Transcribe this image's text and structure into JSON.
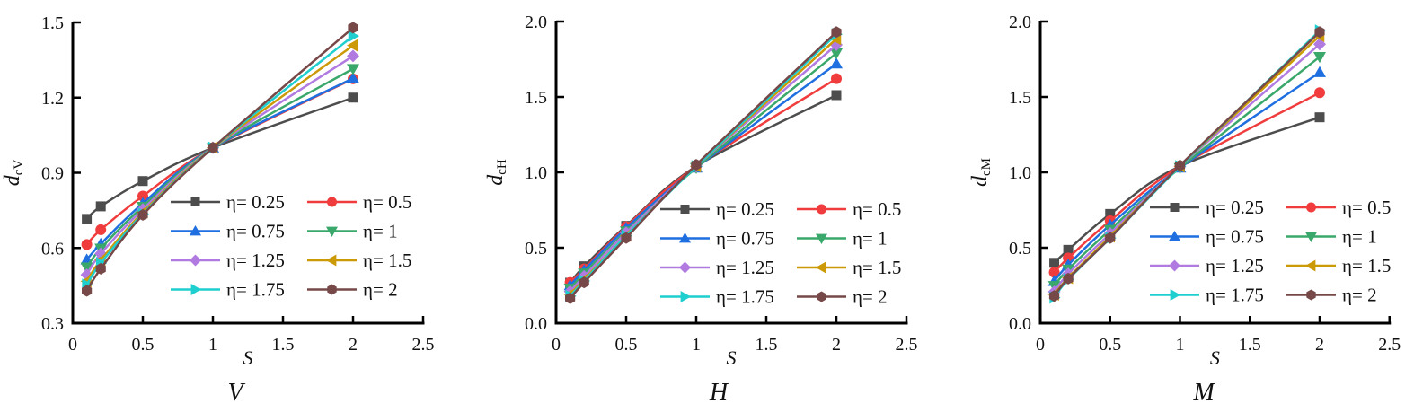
{
  "chart_data": [
    {
      "type": "line",
      "panel_label": "V",
      "xlabel": "S",
      "ylabel_main": "d",
      "ylabel_sub": "cV",
      "xlim": [
        0,
        2.5
      ],
      "ylim": [
        0.3,
        1.5
      ],
      "xticks": [
        "0",
        "0.5",
        "1",
        "1.5",
        "2",
        "2.5"
      ],
      "yticks": [
        "0.3",
        "0.6",
        "0.9",
        "1.2",
        "1.5"
      ],
      "grid": false,
      "legend_placement": "bottom-right",
      "x": [
        0.1,
        0.2,
        0.5,
        1,
        2
      ],
      "series": [
        {
          "name": "η= 0.25",
          "values": [
            0.716,
            0.766,
            0.867,
            1.0,
            1.2
          ]
        },
        {
          "name": "η= 0.5",
          "values": [
            0.614,
            0.673,
            0.807,
            1.0,
            1.275
          ]
        },
        {
          "name": "η= 0.75",
          "values": [
            0.553,
            0.616,
            0.778,
            1.0,
            1.277
          ]
        },
        {
          "name": "η= 1",
          "values": [
            0.523,
            0.598,
            0.765,
            1.0,
            1.315
          ]
        },
        {
          "name": "η= 1.25",
          "values": [
            0.493,
            0.577,
            0.754,
            1.0,
            1.366
          ]
        },
        {
          "name": "η= 1.5",
          "values": [
            0.467,
            0.551,
            0.742,
            1.0,
            1.408
          ]
        },
        {
          "name": "η= 1.75",
          "values": [
            0.453,
            0.539,
            0.736,
            1.0,
            1.446
          ]
        },
        {
          "name": "η= 2",
          "values": [
            0.429,
            0.517,
            0.732,
            1.0,
            1.479
          ]
        }
      ]
    },
    {
      "type": "line",
      "panel_label": "H",
      "xlabel": "S",
      "ylabel_main": "d",
      "ylabel_sub": "cH",
      "xlim": [
        0,
        2.5
      ],
      "ylim": [
        0.0,
        2.0
      ],
      "xticks": [
        "0",
        "0.5",
        "1",
        "1.5",
        "2",
        "2.5"
      ],
      "yticks": [
        "0.0",
        "0.5",
        "1.0",
        "1.5",
        "2.0"
      ],
      "grid": false,
      "legend_placement": "bottom-right",
      "x": [
        0.1,
        0.2,
        0.5,
        1,
        2
      ],
      "series": [
        {
          "name": "η= 0.25",
          "values": [
            0.268,
            0.377,
            0.645,
            1.04,
            1.512
          ]
        },
        {
          "name": "η= 0.5",
          "values": [
            0.27,
            0.36,
            0.64,
            1.04,
            1.621
          ]
        },
        {
          "name": "η= 0.75",
          "values": [
            0.25,
            0.35,
            0.63,
            1.03,
            1.72
          ]
        },
        {
          "name": "η= 1",
          "values": [
            0.23,
            0.33,
            0.61,
            1.03,
            1.79
          ]
        },
        {
          "name": "η= 1.25",
          "values": [
            0.21,
            0.31,
            0.6,
            1.04,
            1.845
          ]
        },
        {
          "name": "η= 1.5",
          "values": [
            0.19,
            0.29,
            0.58,
            1.04,
            1.885
          ]
        },
        {
          "name": "η= 1.75",
          "values": [
            0.18,
            0.28,
            0.58,
            1.04,
            1.915
          ]
        },
        {
          "name": "η= 2",
          "values": [
            0.165,
            0.27,
            0.565,
            1.05,
            1.93
          ]
        }
      ]
    },
    {
      "type": "line",
      "panel_label": "M",
      "xlabel": "S",
      "ylabel_main": "d",
      "ylabel_sub": "cM",
      "xlim": [
        0,
        2.5
      ],
      "ylim": [
        0.0,
        2.0
      ],
      "xticks": [
        "0",
        "0.5",
        "1",
        "1.5",
        "2",
        "2.5"
      ],
      "yticks": [
        "0.0",
        "0.5",
        "1.0",
        "1.5",
        "2.0"
      ],
      "grid": false,
      "legend_placement": "bottom-right",
      "x": [
        0.1,
        0.2,
        0.5,
        1,
        2
      ],
      "series": [
        {
          "name": "η= 0.25",
          "values": [
            0.4,
            0.486,
            0.724,
            1.04,
            1.365
          ]
        },
        {
          "name": "η= 0.5",
          "values": [
            0.337,
            0.432,
            0.679,
            1.04,
            1.528
          ]
        },
        {
          "name": "η= 0.75",
          "values": [
            0.278,
            0.387,
            0.651,
            1.03,
            1.663
          ]
        },
        {
          "name": "η= 1",
          "values": [
            0.248,
            0.357,
            0.62,
            1.03,
            1.766
          ]
        },
        {
          "name": "η= 1.25",
          "values": [
            0.208,
            0.327,
            0.595,
            1.04,
            1.85
          ]
        },
        {
          "name": "η= 1.5",
          "values": [
            0.19,
            0.3,
            0.575,
            1.04,
            1.905
          ]
        },
        {
          "name": "η= 1.75",
          "values": [
            0.17,
            0.29,
            0.565,
            1.04,
            1.94
          ]
        },
        {
          "name": "η= 2",
          "values": [
            0.18,
            0.295,
            0.565,
            1.045,
            1.93
          ]
        }
      ]
    }
  ],
  "series_style": [
    {
      "color": "#4d4d4d",
      "marker": "square"
    },
    {
      "color": "#f03c3c",
      "marker": "circle"
    },
    {
      "color": "#1f6fe0",
      "marker": "triangle-up"
    },
    {
      "color": "#3aa86b",
      "marker": "triangle-down"
    },
    {
      "color": "#b07ae0",
      "marker": "diamond"
    },
    {
      "color": "#cc9a06",
      "marker": "triangle-left"
    },
    {
      "color": "#1fcfcf",
      "marker": "triangle-right"
    },
    {
      "color": "#764848",
      "marker": "hexagon"
    }
  ]
}
